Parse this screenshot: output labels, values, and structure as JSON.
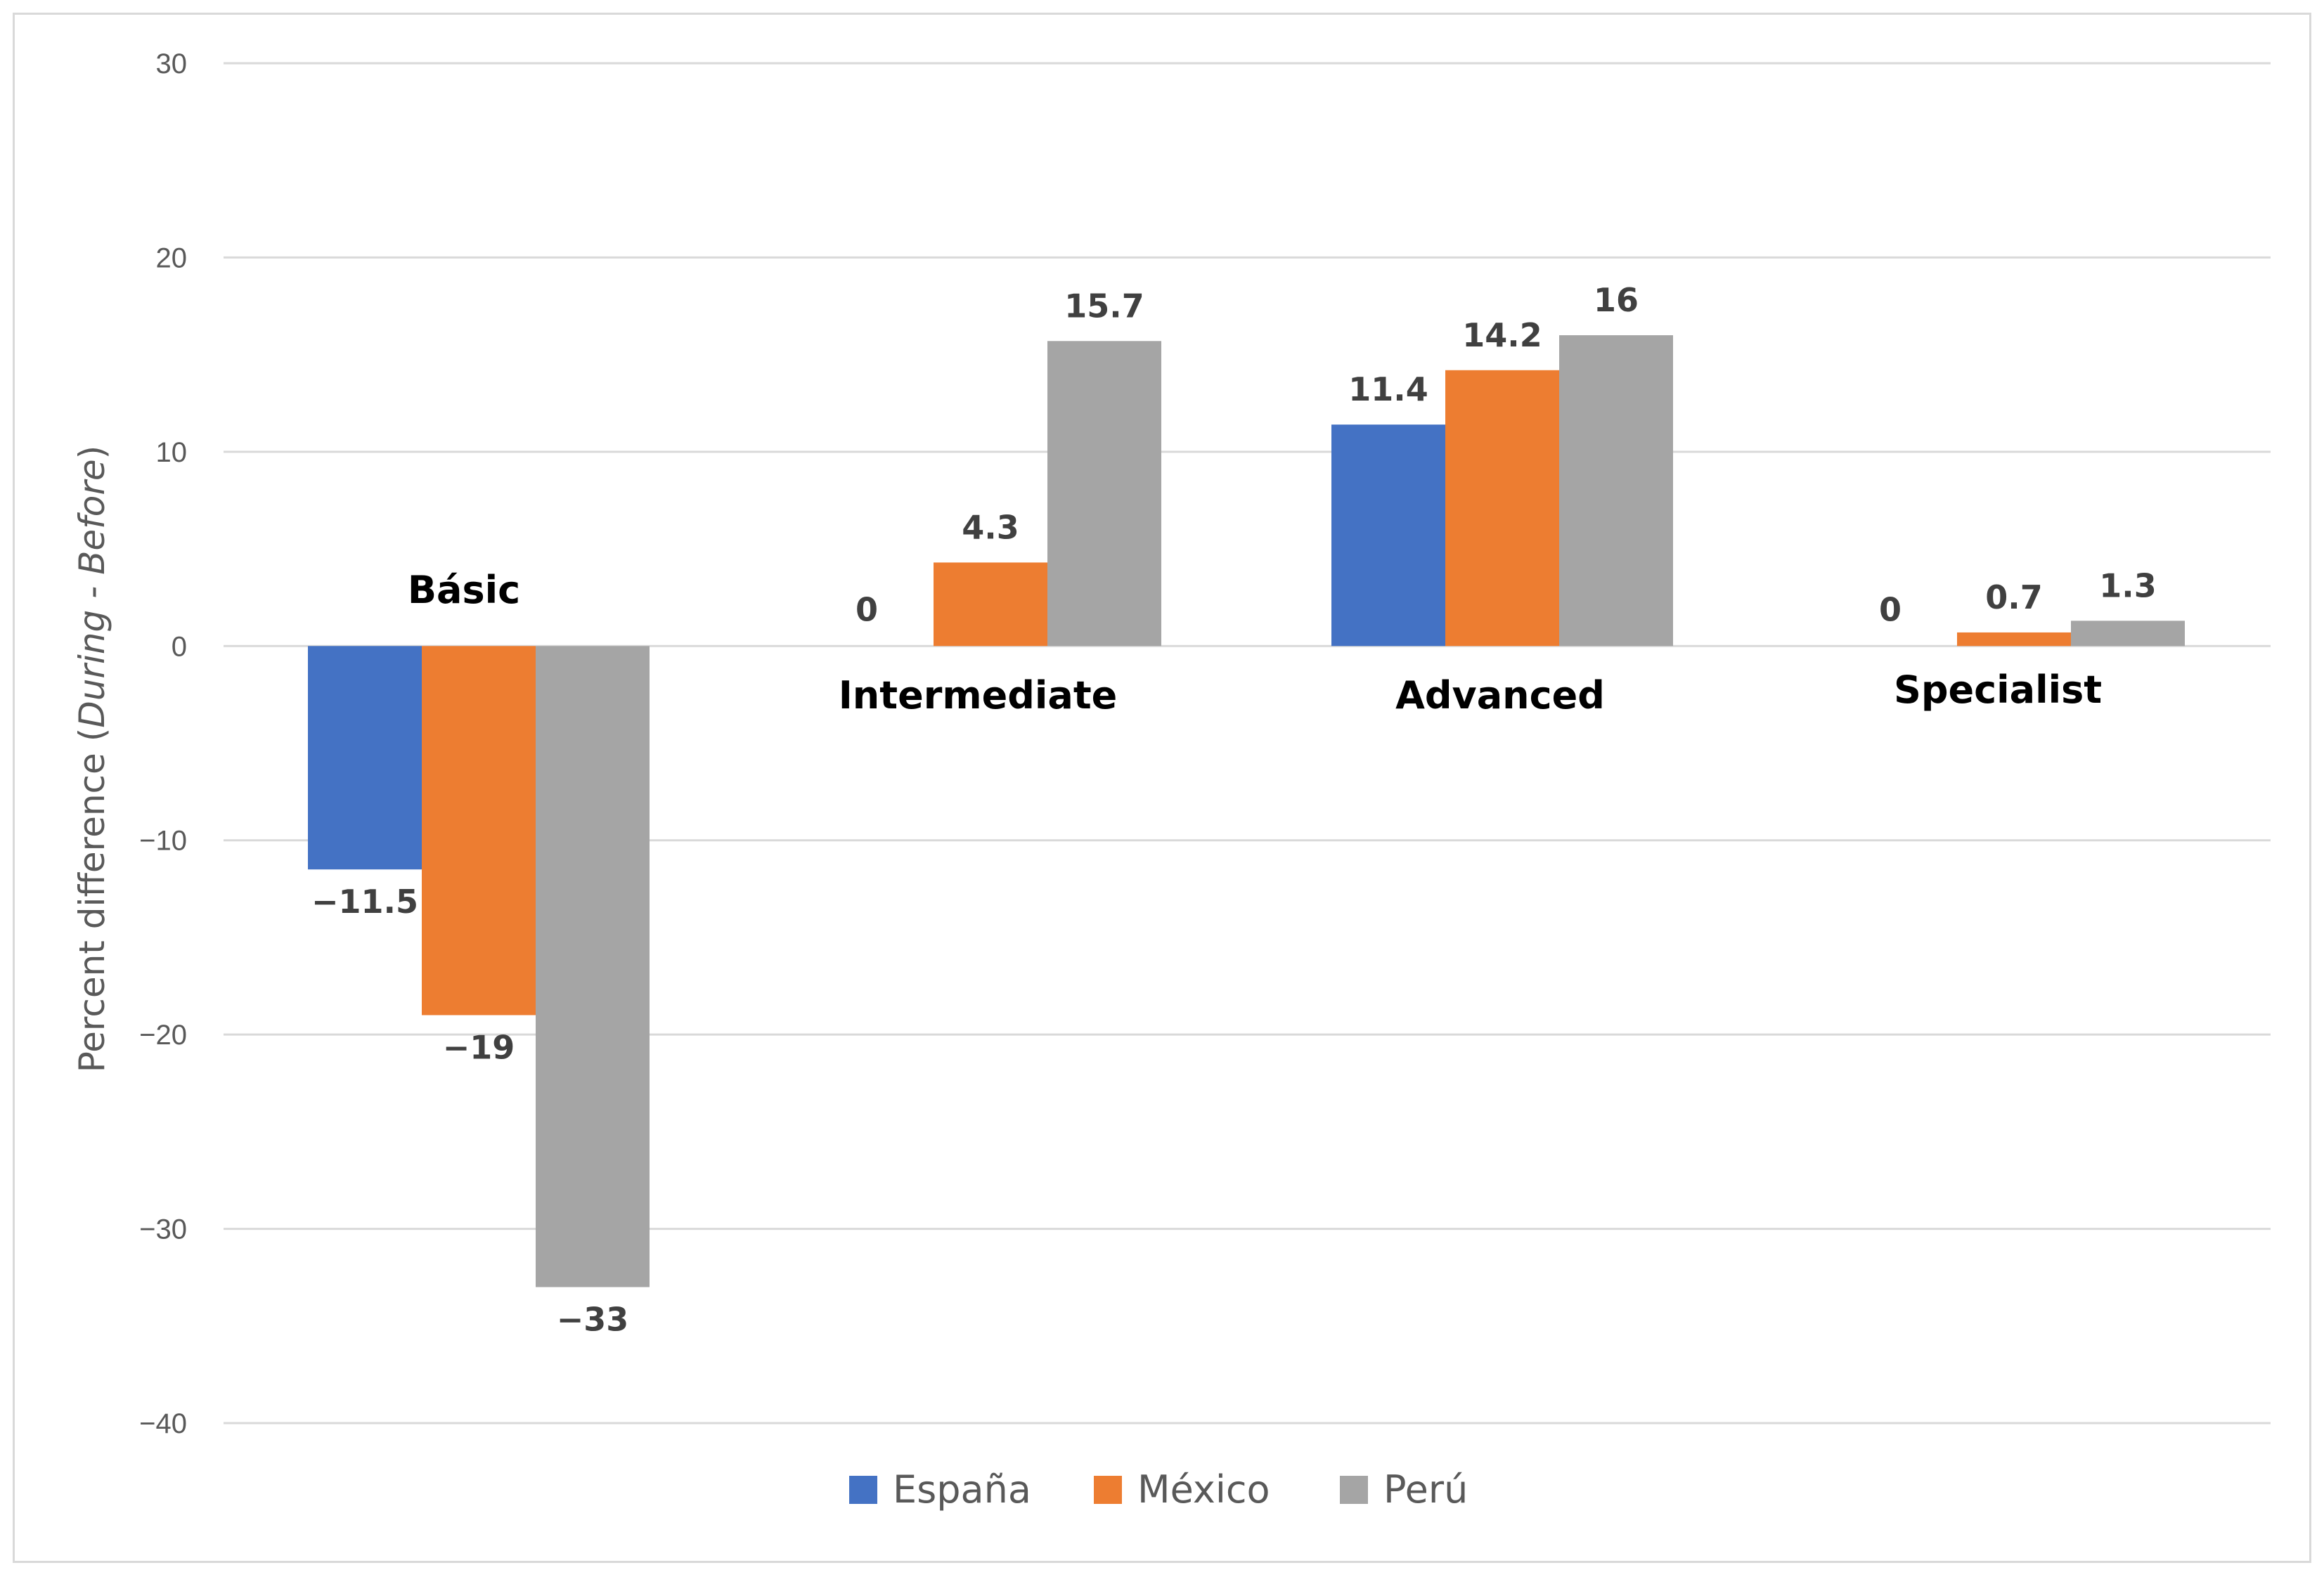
{
  "chart_data": {
    "type": "bar",
    "title": "",
    "xlabel": "",
    "ylabel": {
      "prefix": "Percent difference (",
      "italic": "During - Before",
      "suffix": ")"
    },
    "ylim": [
      -40,
      30
    ],
    "yticks": [
      30,
      20,
      10,
      0,
      -10,
      -20,
      -30,
      -40
    ],
    "ytick_labels": [
      "30",
      "20",
      "10",
      "0",
      "−10",
      "−20",
      "−30",
      "−40"
    ],
    "grid": true,
    "legend_position": "bottom",
    "categories": [
      "Básic",
      "Intermediate",
      "Advanced",
      "Specialist"
    ],
    "series": [
      {
        "name": "España",
        "color": "#4472c4",
        "values": [
          -11.5,
          0,
          11.4,
          0
        ],
        "labels": [
          "−11.5",
          "0",
          "11.4",
          "0"
        ]
      },
      {
        "name": "México",
        "color": "#ed7d31",
        "values": [
          -19,
          4.3,
          14.2,
          0.7
        ],
        "labels": [
          "−19",
          "4.3",
          "14.2",
          "0.7"
        ]
      },
      {
        "name": "Perú",
        "color": "#a5a5a5",
        "values": [
          -33,
          15.7,
          16,
          1.3
        ],
        "labels": [
          "−33",
          "15.7",
          "16",
          "1.3"
        ]
      }
    ]
  },
  "colors": {
    "grid": "#d9d9d9",
    "frame": "#d9d9d9"
  }
}
